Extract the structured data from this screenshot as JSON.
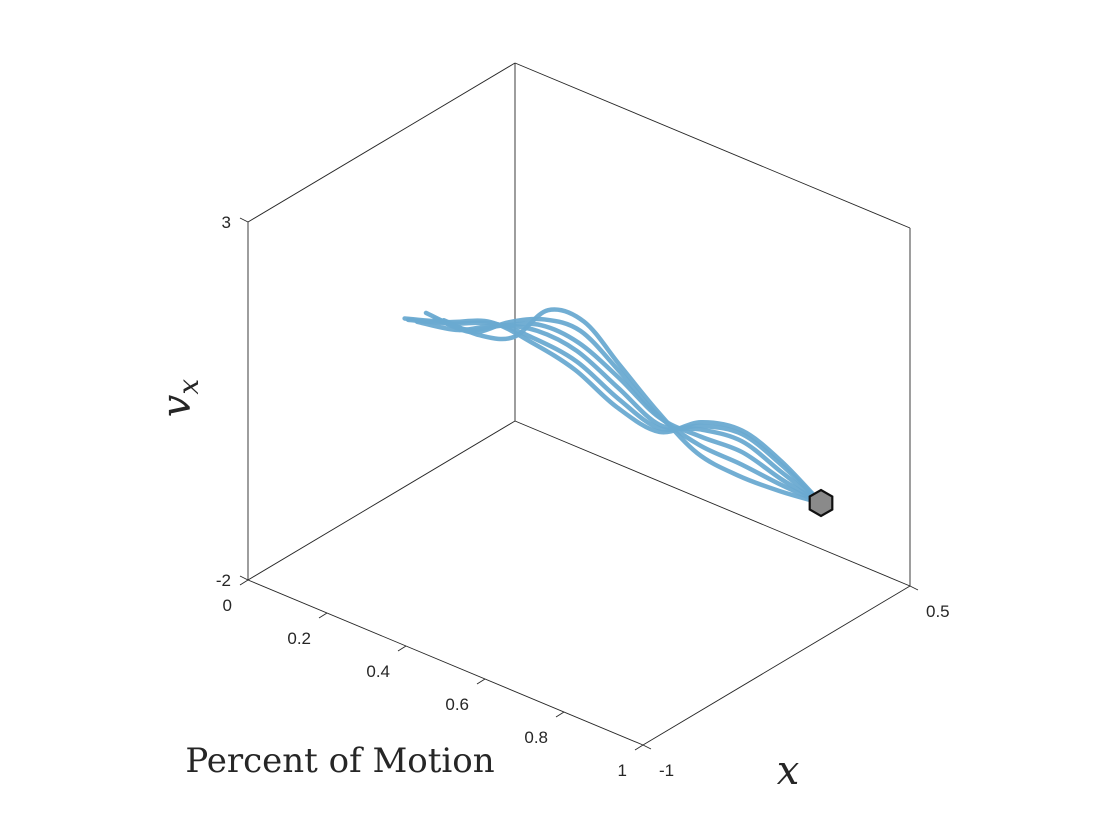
{
  "chart_data": {
    "type": "line",
    "subtype": "3d-trajectories",
    "title": "",
    "xlabel": "Percent of Motion",
    "ylabel": "x",
    "zlabel": "v_x",
    "xlim": [
      0,
      1
    ],
    "ylim": [
      -1,
      0.5
    ],
    "zlim": [
      -2,
      3
    ],
    "x_ticks": [
      "0",
      "0.2",
      "0.4",
      "0.6",
      "0.8",
      "1"
    ],
    "y_ticks": [
      "-1",
      "0.5"
    ],
    "z_ticks": [
      "-2",
      "3"
    ],
    "grid": false,
    "line_color": "#6aaad1",
    "marker_color": "#8a8a8a",
    "end_marker": {
      "x": 1.0,
      "y": 0.0,
      "z": -0.1
    },
    "series": [
      {
        "x": [
          0,
          0.1,
          0.2,
          0.3,
          0.4,
          0.5,
          0.6,
          0.7,
          0.8,
          0.9,
          1.0
        ],
        "y": [
          0.1,
          0.08,
          0.05,
          0.02,
          0.0,
          -0.02,
          -0.03,
          -0.03,
          -0.02,
          -0.01,
          0.0
        ],
        "z": [
          0.0,
          0.05,
          0.3,
          0.95,
          1.05,
          0.7,
          0.3,
          -0.05,
          -0.15,
          -0.15,
          -0.1
        ]
      },
      {
        "x": [
          0,
          0.1,
          0.2,
          0.3,
          0.4,
          0.5,
          0.6,
          0.7,
          0.8,
          0.9,
          1.0
        ],
        "y": [
          0.05,
          0.04,
          0.02,
          0.0,
          -0.02,
          -0.03,
          -0.03,
          -0.02,
          -0.01,
          0.0,
          0.0
        ],
        "z": [
          0.1,
          0.15,
          0.55,
          0.85,
          0.95,
          0.65,
          0.25,
          0.05,
          0.0,
          -0.08,
          -0.1
        ]
      },
      {
        "x": [
          0,
          0.1,
          0.2,
          0.3,
          0.4,
          0.5,
          0.6,
          0.7,
          0.8,
          0.9,
          1.0
        ],
        "y": [
          0.0,
          0.0,
          -0.01,
          -0.02,
          -0.03,
          -0.03,
          -0.02,
          -0.01,
          0.0,
          0.0,
          0.0
        ],
        "z": [
          0.25,
          0.25,
          0.55,
          0.8,
          0.8,
          0.55,
          0.2,
          0.15,
          0.15,
          0.0,
          -0.1
        ]
      },
      {
        "x": [
          0,
          0.1,
          0.2,
          0.3,
          0.4,
          0.5,
          0.6,
          0.7,
          0.8,
          0.9,
          1.0
        ],
        "y": [
          -0.05,
          -0.04,
          -0.04,
          -0.04,
          -0.04,
          -0.03,
          -0.02,
          -0.01,
          0.0,
          0.0,
          0.0
        ],
        "z": [
          0.2,
          0.3,
          0.6,
          0.75,
          0.7,
          0.4,
          0.1,
          0.25,
          0.3,
          0.1,
          -0.1
        ]
      },
      {
        "x": [
          0,
          0.1,
          0.2,
          0.3,
          0.4,
          0.5,
          0.6,
          0.7,
          0.8,
          0.9,
          1.0
        ],
        "y": [
          -0.1,
          -0.08,
          -0.06,
          -0.05,
          -0.04,
          -0.03,
          -0.02,
          -0.01,
          0.0,
          0.0,
          0.0
        ],
        "z": [
          0.3,
          0.45,
          0.65,
          0.65,
          0.55,
          0.25,
          0.05,
          0.3,
          0.4,
          0.2,
          -0.1
        ]
      },
      {
        "x": [
          0,
          0.1,
          0.2,
          0.3,
          0.4,
          0.5,
          0.6,
          0.7,
          0.8,
          0.9,
          1.0
        ],
        "y": [
          -0.12,
          -0.1,
          -0.08,
          -0.06,
          -0.05,
          -0.04,
          -0.02,
          -0.01,
          0.0,
          0.0,
          0.0
        ],
        "z": [
          0.35,
          0.5,
          0.7,
          0.6,
          0.45,
          0.15,
          0.0,
          0.35,
          0.45,
          0.25,
          -0.1
        ]
      }
    ]
  }
}
